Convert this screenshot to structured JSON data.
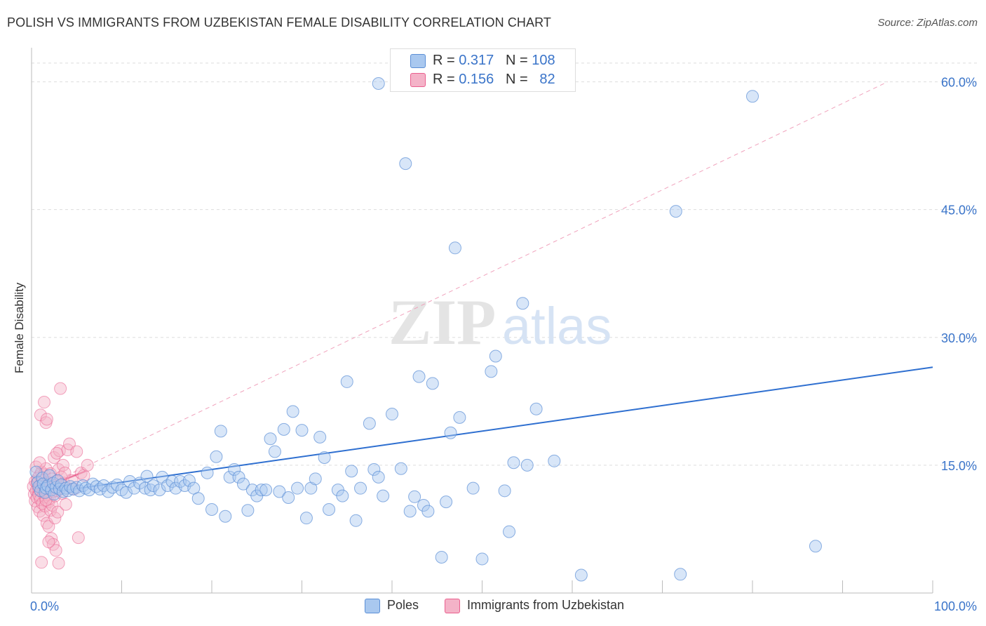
{
  "title": "POLISH VS IMMIGRANTS FROM UZBEKISTAN FEMALE DISABILITY CORRELATION CHART",
  "source": "Source: ZipAtlas.com",
  "watermark": {
    "zip": "ZIP",
    "atlas": "atlas"
  },
  "legend": {
    "r_label": "R =",
    "n_label": "N =",
    "rows": [
      {
        "r": "0.317",
        "n": "108"
      },
      {
        "r": "0.156",
        "n": "82"
      }
    ]
  },
  "colors": {
    "poles": "#5b8fd6",
    "poles_fill": "#a9c8ef",
    "uzbekistan": "#ea5f8e",
    "uzbekistan_fill": "#f4b3c8",
    "axis_text": "#3a74c9"
  },
  "chart_data": {
    "type": "scatter",
    "title": "POLISH VS IMMIGRANTS FROM UZBEKISTAN FEMALE DISABILITY CORRELATION CHART",
    "xlabel": "",
    "ylabel": "Female Disability",
    "xlim": [
      0,
      100
    ],
    "ylim": [
      0,
      64
    ],
    "x_tick_labels": [
      "0.0%",
      "100.0%"
    ],
    "y_ticks": [
      15,
      30,
      45,
      60
    ],
    "y_tick_labels": [
      "15.0%",
      "30.0%",
      "45.0%",
      "60.0%"
    ],
    "grid": true,
    "legend_position": "top-center",
    "series": [
      {
        "name": "Poles",
        "r": 0.317,
        "n": 108,
        "trend": {
          "x": [
            0,
            100
          ],
          "y": [
            11.5,
            26.5
          ]
        },
        "points": [
          [
            0.5,
            14.2
          ],
          [
            0.7,
            13.0
          ],
          [
            0.8,
            12.5
          ],
          [
            1.0,
            12.0
          ],
          [
            1.2,
            13.5
          ],
          [
            1.3,
            12.8
          ],
          [
            1.5,
            11.8
          ],
          [
            1.6,
            12.3
          ],
          [
            1.8,
            12.6
          ],
          [
            2.0,
            13.8
          ],
          [
            2.2,
            12.1
          ],
          [
            2.4,
            12.9
          ],
          [
            2.5,
            11.6
          ],
          [
            2.7,
            12.4
          ],
          [
            2.9,
            13.2
          ],
          [
            3.1,
            12.2
          ],
          [
            3.3,
            12.7
          ],
          [
            3.5,
            11.9
          ],
          [
            3.8,
            12.3
          ],
          [
            4.0,
            12.0
          ],
          [
            4.3,
            12.5
          ],
          [
            4.6,
            12.2
          ],
          [
            5.0,
            12.4
          ],
          [
            5.3,
            12.0
          ],
          [
            5.7,
            12.6
          ],
          [
            6.0,
            12.3
          ],
          [
            6.4,
            12.1
          ],
          [
            6.8,
            12.8
          ],
          [
            7.2,
            12.5
          ],
          [
            7.6,
            12.2
          ],
          [
            8.0,
            12.6
          ],
          [
            8.5,
            11.9
          ],
          [
            9.0,
            12.4
          ],
          [
            9.5,
            12.7
          ],
          [
            10.0,
            12.1
          ],
          [
            10.5,
            11.8
          ],
          [
            10.9,
            13.1
          ],
          [
            11.4,
            12.3
          ],
          [
            12.0,
            12.9
          ],
          [
            12.6,
            12.3
          ],
          [
            12.8,
            13.7
          ],
          [
            13.2,
            12.1
          ],
          [
            13.5,
            12.6
          ],
          [
            14.2,
            12.1
          ],
          [
            14.5,
            13.6
          ],
          [
            15.1,
            12.6
          ],
          [
            15.6,
            13.1
          ],
          [
            16.0,
            12.3
          ],
          [
            16.5,
            13.1
          ],
          [
            17.0,
            12.6
          ],
          [
            17.5,
            13.2
          ],
          [
            18.0,
            12.3
          ],
          [
            18.5,
            11.1
          ],
          [
            19.5,
            14.1
          ],
          [
            20.0,
            9.8
          ],
          [
            20.5,
            16.0
          ],
          [
            21.0,
            19.0
          ],
          [
            21.5,
            9.0
          ],
          [
            22.0,
            13.6
          ],
          [
            22.5,
            14.5
          ],
          [
            23.0,
            13.6
          ],
          [
            23.5,
            12.8
          ],
          [
            24.0,
            9.7
          ],
          [
            24.5,
            12.1
          ],
          [
            25.0,
            11.4
          ],
          [
            25.5,
            12.1
          ],
          [
            26.0,
            12.1
          ],
          [
            26.5,
            18.1
          ],
          [
            27.0,
            16.6
          ],
          [
            27.5,
            11.9
          ],
          [
            28.0,
            19.2
          ],
          [
            28.5,
            11.2
          ],
          [
            29.0,
            21.3
          ],
          [
            29.5,
            12.3
          ],
          [
            30.0,
            19.1
          ],
          [
            30.5,
            8.8
          ],
          [
            31.0,
            12.3
          ],
          [
            31.5,
            13.4
          ],
          [
            32.0,
            18.3
          ],
          [
            32.5,
            15.9
          ],
          [
            33.0,
            9.8
          ],
          [
            34.0,
            12.1
          ],
          [
            34.5,
            11.4
          ],
          [
            35.0,
            24.8
          ],
          [
            35.5,
            14.3
          ],
          [
            36.0,
            8.5
          ],
          [
            36.5,
            12.3
          ],
          [
            37.5,
            19.9
          ],
          [
            38.0,
            14.5
          ],
          [
            38.5,
            13.6
          ],
          [
            39.0,
            11.4
          ],
          [
            40.0,
            21.0
          ],
          [
            41.0,
            14.6
          ],
          [
            42.0,
            9.6
          ],
          [
            42.5,
            11.3
          ],
          [
            43.0,
            25.4
          ],
          [
            43.5,
            10.3
          ],
          [
            44.0,
            9.6
          ],
          [
            44.5,
            24.6
          ],
          [
            45.5,
            4.2
          ],
          [
            46.0,
            10.7
          ],
          [
            46.5,
            18.8
          ],
          [
            47.0,
            40.5
          ],
          [
            47.5,
            20.6
          ],
          [
            49.0,
            12.3
          ],
          [
            50.0,
            4.0
          ],
          [
            51.0,
            26.0
          ],
          [
            51.5,
            27.8
          ],
          [
            52.5,
            12.0
          ],
          [
            53.0,
            7.2
          ],
          [
            53.5,
            15.3
          ],
          [
            54.5,
            34.0
          ],
          [
            55.0,
            15.0
          ],
          [
            56.0,
            21.6
          ],
          [
            58.0,
            15.5
          ],
          [
            61.0,
            2.1
          ],
          [
            71.5,
            44.8
          ],
          [
            72.0,
            2.2
          ],
          [
            80.0,
            58.3
          ],
          [
            87.0,
            5.5
          ],
          [
            38.5,
            59.8
          ],
          [
            41.5,
            50.4
          ]
        ]
      },
      {
        "name": "Immigrants from Uzbekistan",
        "r": 0.156,
        "n": 82,
        "trend": {
          "x": [
            0,
            6.0
          ],
          "y": [
            11.8,
            14.3
          ]
        },
        "trend_extended": {
          "x": [
            0,
            95
          ],
          "y": [
            11.8,
            60.0
          ]
        },
        "points": [
          [
            0.2,
            12.5
          ],
          [
            0.3,
            11.6
          ],
          [
            0.4,
            13.1
          ],
          [
            0.4,
            10.8
          ],
          [
            0.5,
            12.0
          ],
          [
            0.5,
            14.8
          ],
          [
            0.6,
            11.2
          ],
          [
            0.6,
            12.9
          ],
          [
            0.7,
            13.5
          ],
          [
            0.7,
            10.1
          ],
          [
            0.8,
            12.2
          ],
          [
            0.8,
            11.5
          ],
          [
            0.9,
            13.8
          ],
          [
            0.9,
            9.6
          ],
          [
            1.0,
            12.7
          ],
          [
            1.0,
            11.0
          ],
          [
            1.1,
            14.2
          ],
          [
            1.1,
            12.3
          ],
          [
            1.2,
            10.5
          ],
          [
            1.2,
            13.2
          ],
          [
            1.3,
            11.8
          ],
          [
            1.3,
            9.1
          ],
          [
            1.4,
            12.6
          ],
          [
            1.4,
            13.9
          ],
          [
            1.5,
            11.3
          ],
          [
            1.5,
            10.2
          ],
          [
            1.6,
            12.1
          ],
          [
            1.6,
            14.6
          ],
          [
            1.7,
            11.6
          ],
          [
            1.7,
            8.2
          ],
          [
            1.8,
            13.0
          ],
          [
            1.8,
            12.4
          ],
          [
            1.9,
            10.7
          ],
          [
            1.9,
            7.8
          ],
          [
            2.0,
            12.9
          ],
          [
            2.0,
            11.1
          ],
          [
            2.1,
            14.0
          ],
          [
            2.1,
            9.7
          ],
          [
            2.2,
            12.2
          ],
          [
            2.2,
            6.4
          ],
          [
            2.3,
            13.4
          ],
          [
            2.3,
            10.3
          ],
          [
            2.4,
            11.9
          ],
          [
            2.4,
            5.7
          ],
          [
            2.5,
            12.6
          ],
          [
            2.5,
            15.9
          ],
          [
            2.6,
            11.4
          ],
          [
            2.6,
            8.8
          ],
          [
            2.7,
            13.1
          ],
          [
            2.7,
            5.0
          ],
          [
            2.8,
            12.0
          ],
          [
            2.9,
            9.5
          ],
          [
            3.0,
            14.5
          ],
          [
            3.0,
            3.5
          ],
          [
            3.1,
            16.7
          ],
          [
            3.2,
            12.4
          ],
          [
            3.3,
            13.6
          ],
          [
            3.4,
            11.7
          ],
          [
            3.5,
            15.0
          ],
          [
            3.6,
            12.9
          ],
          [
            3.7,
            14.1
          ],
          [
            3.8,
            10.4
          ],
          [
            4.0,
            16.8
          ],
          [
            4.2,
            17.5
          ],
          [
            4.5,
            13.2
          ],
          [
            4.7,
            12.2
          ],
          [
            5.0,
            16.6
          ],
          [
            5.2,
            6.5
          ],
          [
            5.5,
            14.1
          ],
          [
            5.8,
            13.8
          ],
          [
            6.2,
            15.0
          ],
          [
            1.0,
            20.9
          ],
          [
            1.4,
            22.4
          ],
          [
            1.6,
            20.0
          ],
          [
            1.7,
            20.4
          ],
          [
            3.2,
            24.0
          ],
          [
            0.9,
            15.3
          ],
          [
            1.1,
            3.6
          ],
          [
            1.9,
            6.0
          ],
          [
            2.2,
            12.8
          ],
          [
            2.8,
            16.4
          ],
          [
            1.6,
            10.9
          ]
        ]
      }
    ]
  }
}
